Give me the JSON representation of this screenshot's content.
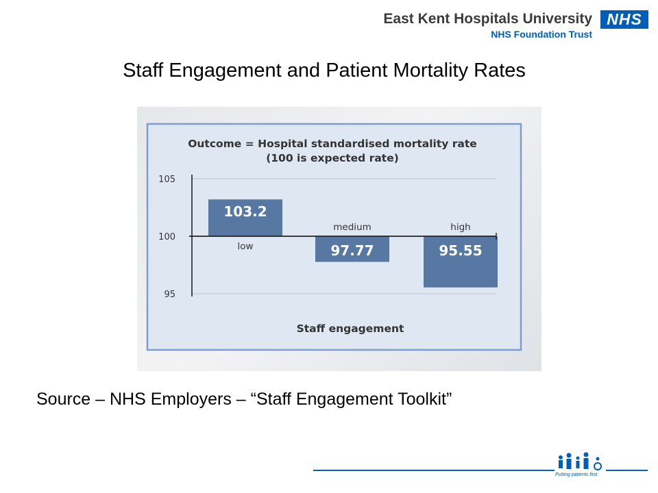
{
  "header": {
    "org_name": "East Kent Hospitals University",
    "org_subtitle": "NHS Foundation Trust",
    "logo_text": "NHS"
  },
  "slide": {
    "title": "Staff Engagement and Patient Mortality Rates",
    "source": "Source – NHS Employers – “Staff Engagement Toolkit”"
  },
  "footer": {
    "tagline": "Putting patients first",
    "accent_color": "#005eb8"
  },
  "chart_data": {
    "type": "bar",
    "title": "Outcome = Hospital standardised mortality rate",
    "subtitle": "(100 is expected rate)",
    "xlabel": "Staff engagement",
    "categories": [
      "low",
      "medium",
      "high"
    ],
    "values": [
      103.2,
      97.77,
      95.55
    ],
    "value_labels": [
      "103.2",
      "97.77",
      "95.55"
    ],
    "baseline": 100,
    "ylim": [
      95,
      105
    ],
    "yticks": [
      "95",
      "100",
      "105"
    ],
    "grid": true,
    "bar_color": "#5878a4"
  }
}
